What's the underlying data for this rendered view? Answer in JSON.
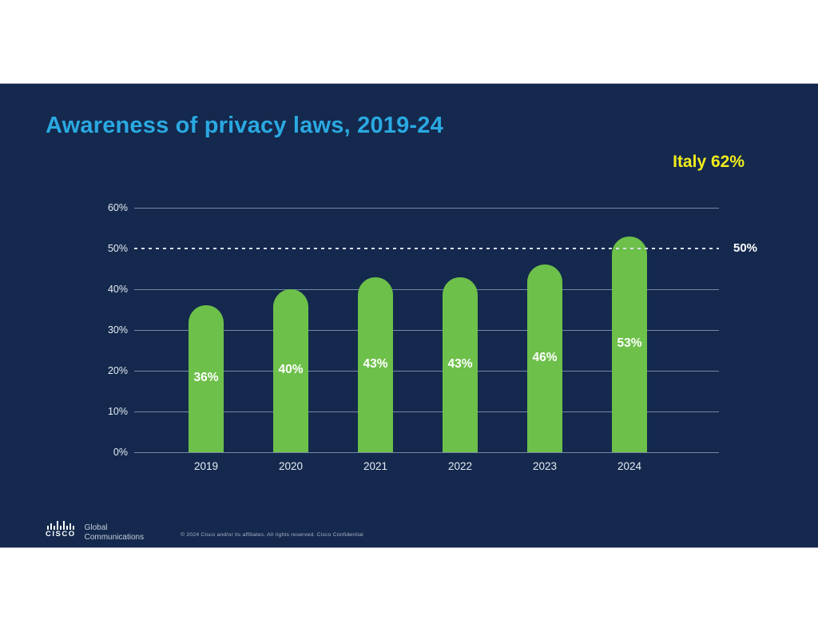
{
  "slide": {
    "title": "Awareness of privacy laws, 2019-24",
    "annotation": "Italy 62%",
    "colors": {
      "background": "#14294d",
      "title": "#2aa9e1",
      "bar": "#6dc04a",
      "annotation": "#f2ed1c",
      "gridline": "rgba(186,199,224,0.6)",
      "text": "#ffffff"
    }
  },
  "chart_data": {
    "type": "bar",
    "title": "Awareness of privacy laws, 2019-24",
    "categories": [
      "2019",
      "2020",
      "2021",
      "2022",
      "2023",
      "2024"
    ],
    "values": [
      36,
      40,
      43,
      43,
      46,
      53
    ],
    "value_labels": [
      "36%",
      "40%",
      "43%",
      "43%",
      "46%",
      "53%"
    ],
    "xlabel": "",
    "ylabel": "",
    "ylim": [
      0,
      60
    ],
    "yticks": [
      "0%",
      "10%",
      "20%",
      "30%",
      "40%",
      "50%",
      "60%"
    ],
    "ytick_values": [
      0,
      10,
      20,
      30,
      40,
      50,
      60
    ],
    "grid": true,
    "legend": false,
    "bar_color": "#6dc04a",
    "value_label_color": "#ffffff",
    "reference_line": {
      "value": 50,
      "label": "50%",
      "style": "dotted"
    },
    "annotation": {
      "text": "Italy 62%",
      "color": "#f2ed1c",
      "position": "top-right"
    }
  },
  "footer": {
    "logo_text": "cisco",
    "org_line1": "Global",
    "org_line2": "Communications",
    "copyright": "© 2024 Cisco and/or its affiliates. All rights reserved. Cisco Confidential"
  }
}
